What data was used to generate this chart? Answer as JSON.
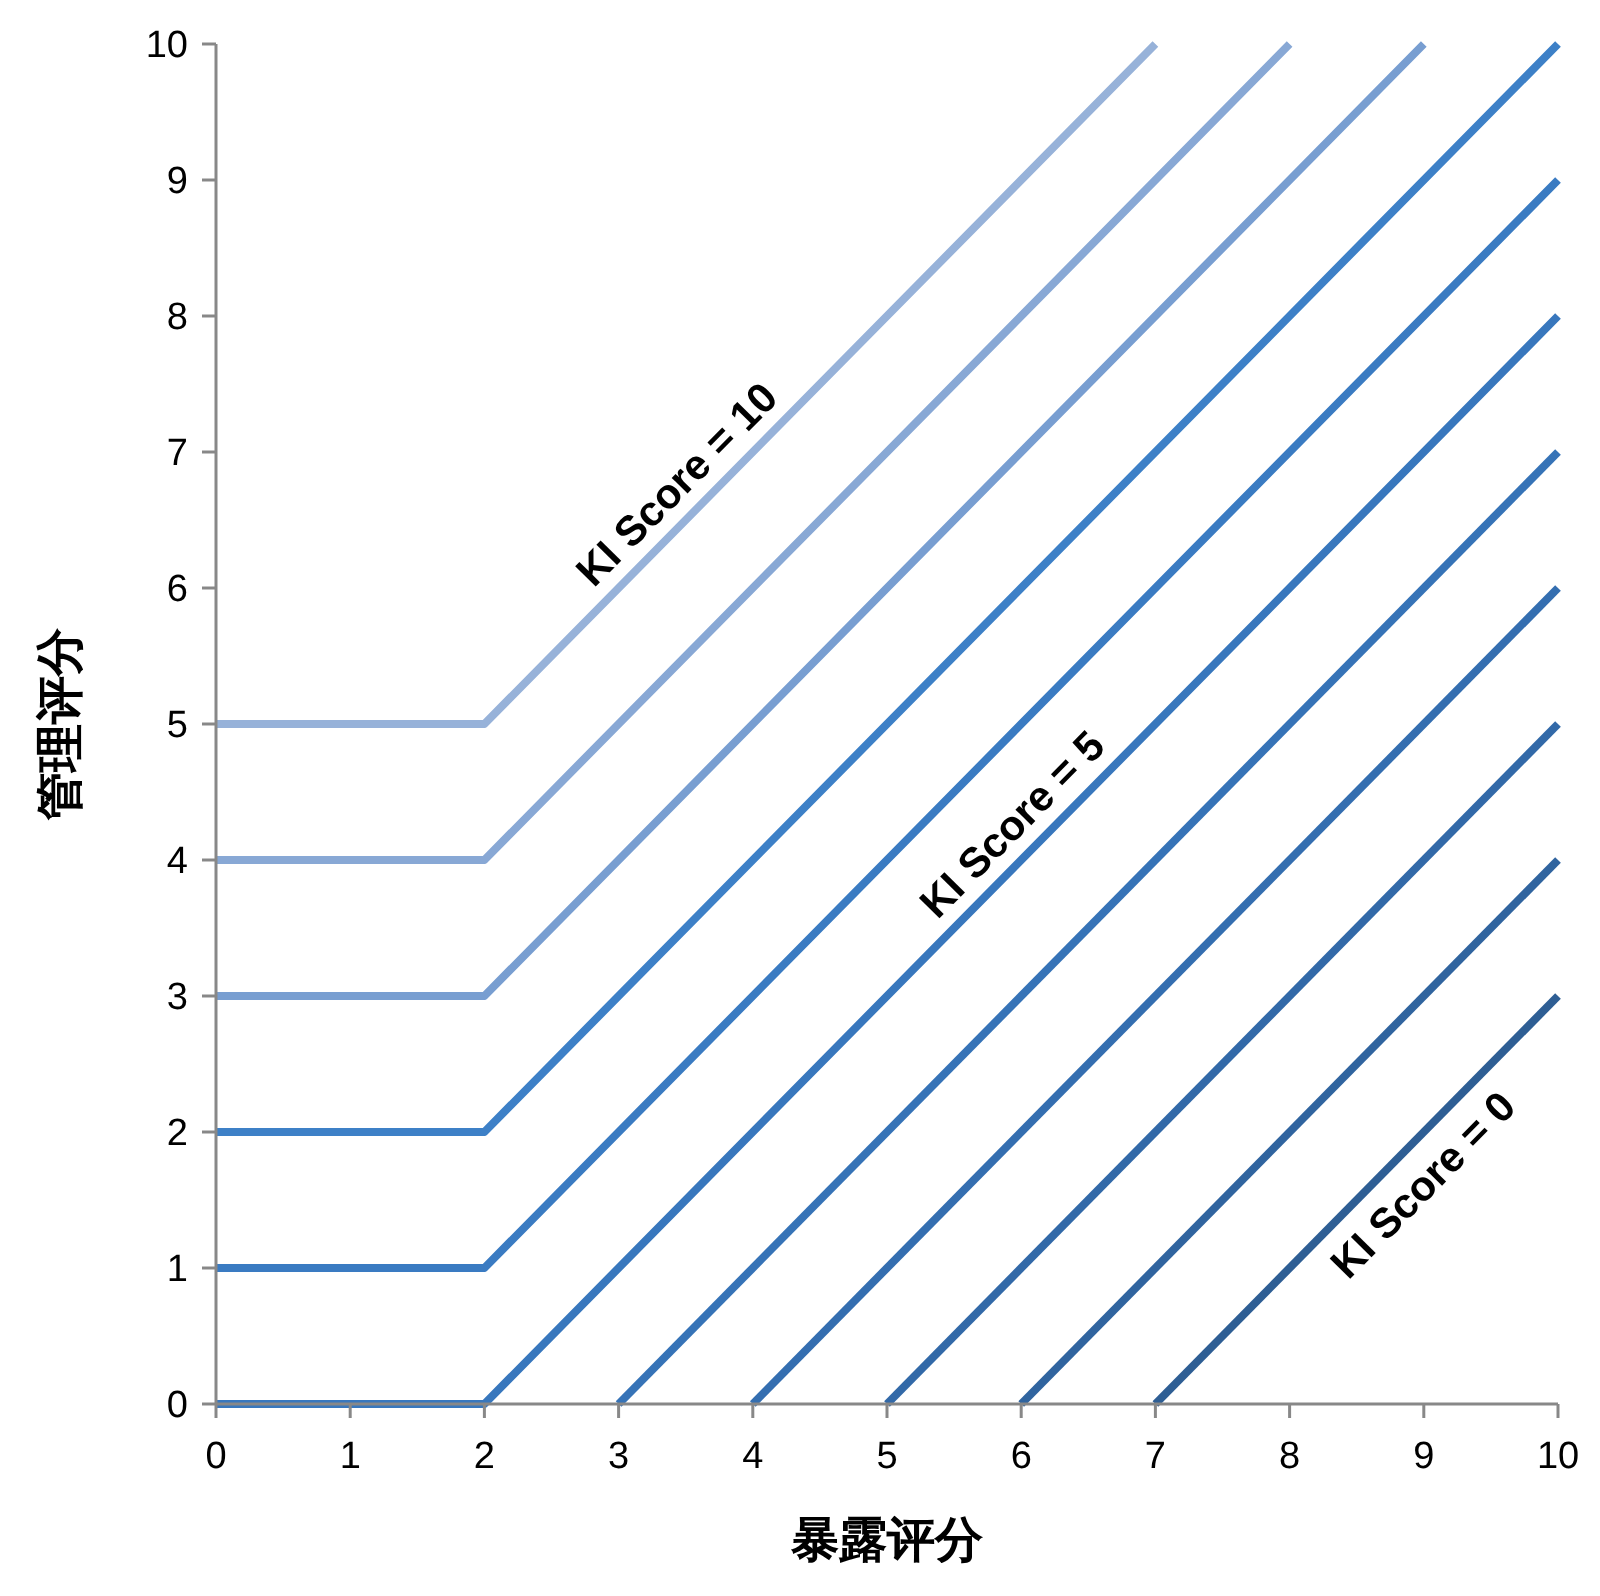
{
  "chart_data": {
    "type": "line",
    "xlabel": "暴露评分",
    "ylabel": "管理评分",
    "xlim": [
      0,
      10
    ],
    "ylim": [
      0,
      10
    ],
    "xticks": [
      0,
      1,
      2,
      3,
      4,
      5,
      6,
      7,
      8,
      9,
      10
    ],
    "yticks": [
      0,
      1,
      2,
      3,
      4,
      5,
      6,
      7,
      8,
      9,
      10
    ],
    "grid": false,
    "series": [
      {
        "color": "#97b2d9",
        "x": [
          0,
          2,
          7
        ],
        "values": [
          5,
          5,
          10
        ]
      },
      {
        "color": "#88a8d5",
        "x": [
          0,
          2,
          8
        ],
        "values": [
          4,
          4,
          10
        ]
      },
      {
        "color": "#789ed1",
        "x": [
          0,
          2,
          9
        ],
        "values": [
          3,
          3,
          10
        ]
      },
      {
        "color": "#3d80c7",
        "x": [
          0,
          2,
          10
        ],
        "values": [
          2,
          2,
          10
        ]
      },
      {
        "color": "#3a7bc2",
        "x": [
          0,
          2,
          10
        ],
        "values": [
          1,
          1,
          9
        ]
      },
      {
        "color": "#3877bd",
        "x": [
          0,
          2,
          10
        ],
        "values": [
          0,
          0,
          8
        ]
      },
      {
        "color": "#3673b7",
        "x": [
          3,
          10
        ],
        "values": [
          0,
          7
        ]
      },
      {
        "color": "#346eb0",
        "x": [
          4,
          10
        ],
        "values": [
          0,
          6
        ]
      },
      {
        "color": "#3269a8",
        "x": [
          5,
          10
        ],
        "values": [
          0,
          5
        ]
      },
      {
        "color": "#30649f",
        "x": [
          6,
          10
        ],
        "values": [
          0,
          4
        ]
      },
      {
        "color": "#2e5e94",
        "x": [
          7,
          10
        ],
        "values": [
          0,
          3
        ]
      }
    ],
    "annotations": [
      {
        "text": "KI Score = 10",
        "x": 3.6,
        "y": 6.6
      },
      {
        "text": "KI Score = 5",
        "x": 6.1,
        "y": 4.1
      },
      {
        "text": "KI Score = 0",
        "x": 8.8,
        "y": 1.8
      }
    ]
  }
}
